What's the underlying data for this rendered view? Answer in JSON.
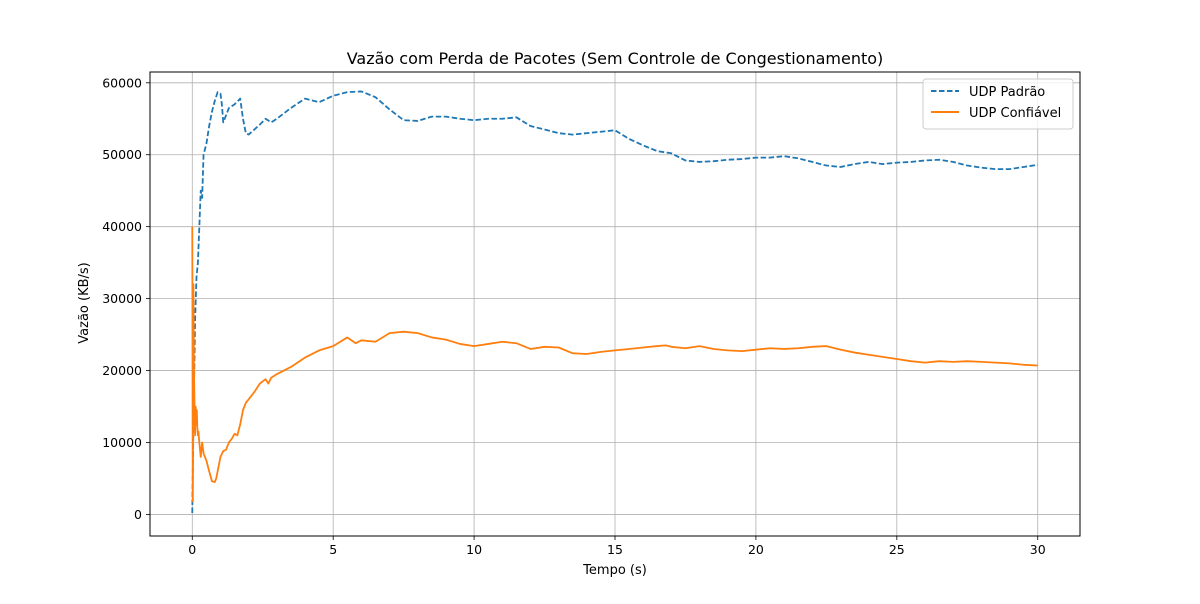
{
  "chart_data": {
    "type": "line",
    "title": "Vazão com Perda de Pacotes (Sem Controle de Congestionamento)",
    "xlabel": "Tempo (s)",
    "ylabel": "Vazão (KB/s)",
    "xlim": [
      -1.5,
      31.5
    ],
    "ylim": [
      -3000,
      61500
    ],
    "xticks": [
      0,
      5,
      10,
      15,
      20,
      25,
      30
    ],
    "yticks": [
      0,
      10000,
      20000,
      30000,
      40000,
      50000,
      60000
    ],
    "grid": true,
    "legend_position": "top-right",
    "series": [
      {
        "name": "UDP Padrão",
        "color": "#1f77b4",
        "style": "dashed",
        "x": [
          0,
          0.05,
          0.1,
          0.15,
          0.2,
          0.25,
          0.3,
          0.35,
          0.4,
          0.5,
          0.6,
          0.7,
          0.8,
          0.9,
          1.0,
          1.05,
          1.1,
          1.2,
          1.3,
          1.5,
          1.7,
          1.8,
          1.9,
          2.0,
          2.2,
          2.4,
          2.6,
          2.8,
          3.0,
          3.5,
          4.0,
          4.5,
          5.0,
          5.5,
          6.0,
          6.5,
          7.0,
          7.5,
          8.0,
          8.5,
          9.0,
          9.5,
          10.0,
          10.5,
          11.0,
          11.5,
          12.0,
          12.5,
          13.0,
          13.5,
          14.0,
          14.5,
          15.0,
          15.5,
          16.0,
          16.5,
          17.0,
          17.5,
          18.0,
          18.5,
          19.0,
          19.5,
          20.0,
          20.5,
          21.0,
          21.5,
          22.0,
          22.5,
          23.0,
          23.5,
          24.0,
          24.5,
          25.0,
          25.5,
          26.0,
          26.5,
          27.0,
          27.5,
          28.0,
          28.5,
          29.0,
          29.5,
          30.0
        ],
        "y": [
          200,
          15000,
          27000,
          33000,
          35000,
          40000,
          45000,
          44000,
          50000,
          51500,
          54000,
          56000,
          57500,
          58700,
          58500,
          57000,
          54500,
          55500,
          56500,
          57000,
          57800,
          55000,
          53000,
          52800,
          53500,
          54200,
          55000,
          54500,
          55000,
          56500,
          57800,
          57300,
          58200,
          58700,
          58800,
          58000,
          56300,
          54800,
          54700,
          55300,
          55300,
          55000,
          54800,
          55000,
          55000,
          55200,
          54000,
          53500,
          53000,
          52800,
          53000,
          53200,
          53400,
          52200,
          51300,
          50500,
          50200,
          49200,
          49000,
          49100,
          49300,
          49400,
          49600,
          49600,
          49800,
          49500,
          49000,
          48500,
          48300,
          48700,
          49000,
          48700,
          48900,
          49000,
          49200,
          49300,
          49000,
          48500,
          48200,
          48000,
          48000,
          48300,
          48600
        ]
      },
      {
        "name": "UDP Confiável",
        "color": "#ff7f0e",
        "style": "solid",
        "x": [
          0,
          0.02,
          0.04,
          0.06,
          0.08,
          0.1,
          0.12,
          0.14,
          0.16,
          0.18,
          0.2,
          0.22,
          0.25,
          0.3,
          0.35,
          0.4,
          0.5,
          0.6,
          0.7,
          0.8,
          0.85,
          0.9,
          1.0,
          1.1,
          1.2,
          1.3,
          1.4,
          1.5,
          1.6,
          1.7,
          1.8,
          1.9,
          2.0,
          2.2,
          2.4,
          2.6,
          2.7,
          2.8,
          3.0,
          3.5,
          4.0,
          4.5,
          5.0,
          5.5,
          5.8,
          6.0,
          6.5,
          7.0,
          7.5,
          8.0,
          8.5,
          9.0,
          9.5,
          10.0,
          10.5,
          11.0,
          11.5,
          12.0,
          12.5,
          13.0,
          13.5,
          14.0,
          14.5,
          15.0,
          15.5,
          16.0,
          16.5,
          16.8,
          17.0,
          17.5,
          18.0,
          18.5,
          19.0,
          19.5,
          20.0,
          20.5,
          21.0,
          21.5,
          22.0,
          22.5,
          23.0,
          23.5,
          24.0,
          24.5,
          25.0,
          25.5,
          26.0,
          26.5,
          27.0,
          27.5,
          28.0,
          28.5,
          29.0,
          29.5,
          30.0
        ],
        "y": [
          40000,
          1800,
          32000,
          20000,
          15000,
          11000,
          15000,
          12500,
          14500,
          12000,
          11000,
          11500,
          10000,
          8000,
          10000,
          8500,
          7500,
          6000,
          4600,
          4500,
          5000,
          6000,
          8000,
          8800,
          9000,
          10000,
          10500,
          11200,
          11000,
          12500,
          14500,
          15500,
          16000,
          17000,
          18200,
          18800,
          18200,
          19000,
          19500,
          20500,
          21800,
          22800,
          23400,
          24600,
          23800,
          24200,
          24000,
          25200,
          25400,
          25200,
          24600,
          24300,
          23700,
          23400,
          23700,
          24000,
          23800,
          23000,
          23300,
          23200,
          22400,
          22300,
          22600,
          22800,
          23000,
          23200,
          23400,
          23500,
          23300,
          23100,
          23400,
          23000,
          22800,
          22700,
          22900,
          23100,
          23000,
          23100,
          23300,
          23400,
          22900,
          22500,
          22200,
          21900,
          21600,
          21300,
          21100,
          21300,
          21200,
          21300,
          21200,
          21100,
          21000,
          20800,
          20700
        ]
      }
    ]
  }
}
